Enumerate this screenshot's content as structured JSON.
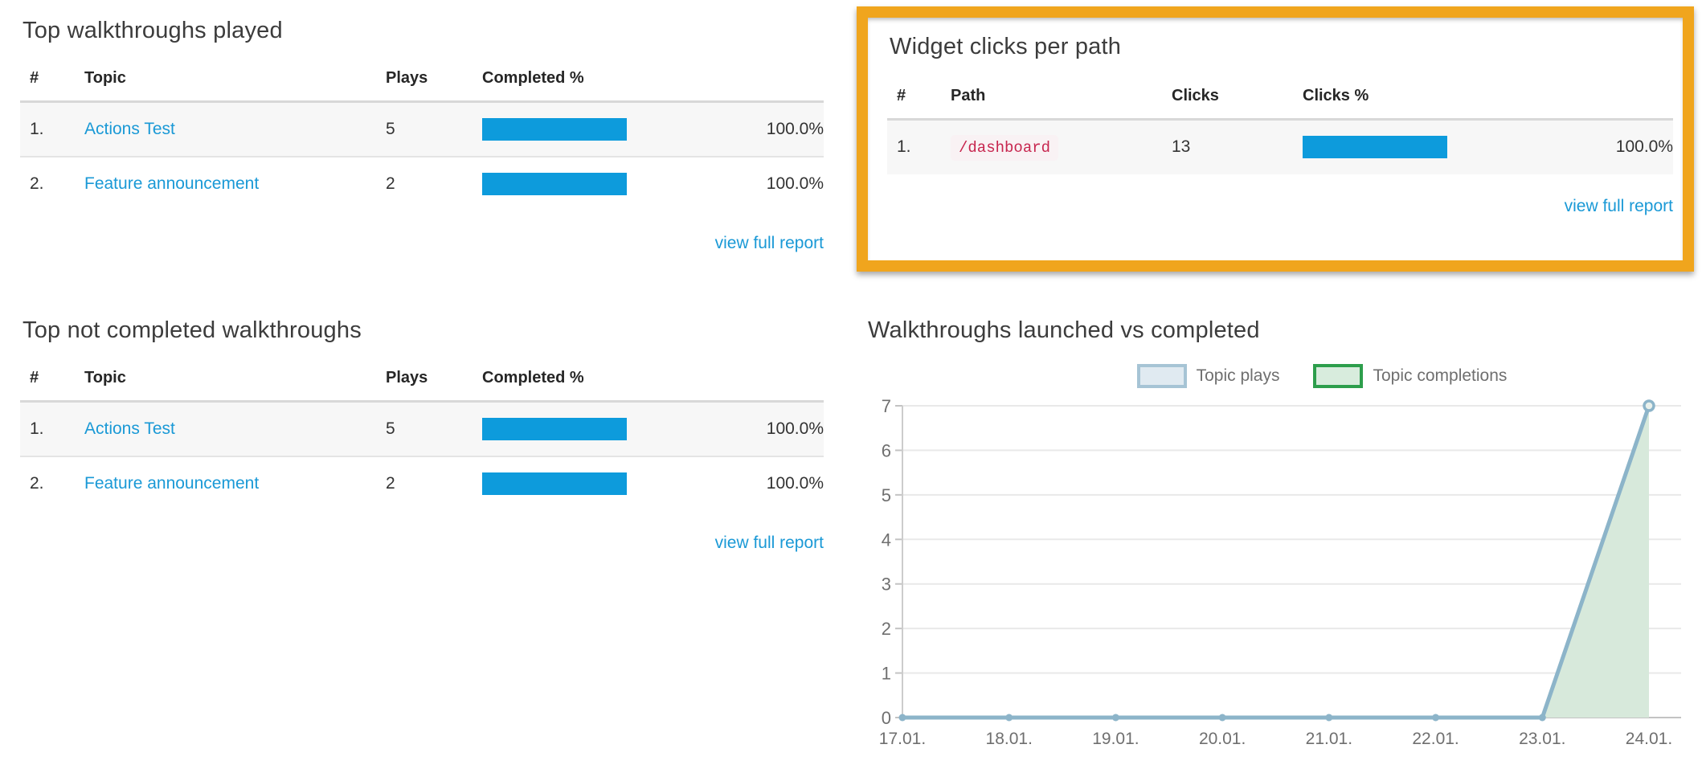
{
  "colors": {
    "highlight_border": "#f0a51d",
    "bar_blue": "#0d9bdc",
    "link_blue": "#1a99d6",
    "row_stripe": "#f7f7f7",
    "code_red": "#c7254e",
    "code_bg": "#f9f2f4"
  },
  "panels": {
    "top_played": {
      "title": "Top walkthroughs played",
      "columns": [
        "#",
        "Topic",
        "Plays",
        "Completed %"
      ],
      "rows": [
        {
          "rank": "1.",
          "topic": "Actions Test",
          "plays": "5",
          "pct": 100,
          "pct_label": "100.0%"
        },
        {
          "rank": "2.",
          "topic": "Feature announcement",
          "plays": "2",
          "pct": 100,
          "pct_label": "100.0%"
        }
      ],
      "footer_link": "view full report"
    },
    "widget_clicks": {
      "title": "Widget clicks per path",
      "columns": [
        "#",
        "Path",
        "Clicks",
        "Clicks %"
      ],
      "rows": [
        {
          "rank": "1.",
          "path": "/dashboard",
          "clicks": "13",
          "pct": 100,
          "pct_label": "100.0%"
        }
      ],
      "footer_link": "view full report"
    },
    "not_completed": {
      "title": "Top not completed walkthroughs",
      "columns": [
        "#",
        "Topic",
        "Plays",
        "Completed %"
      ],
      "rows": [
        {
          "rank": "1.",
          "topic": "Actions Test",
          "plays": "5",
          "pct": 100,
          "pct_label": "100.0%"
        },
        {
          "rank": "2.",
          "topic": "Feature announcement",
          "plays": "2",
          "pct": 100,
          "pct_label": "100.0%"
        }
      ],
      "footer_link": "view full report"
    }
  },
  "chart_data": {
    "type": "area",
    "title": "Walkthroughs launched vs completed",
    "x": [
      "17.01.",
      "18.01.",
      "19.01.",
      "20.01.",
      "21.01.",
      "22.01.",
      "23.01.",
      "24.01."
    ],
    "series": [
      {
        "name": "Topic plays",
        "values": [
          0,
          0,
          0,
          0,
          0,
          0,
          0,
          7
        ],
        "line_color": "#8cb4c9",
        "legend_fill": "#e0eaf1",
        "legend_border": "#a6c4d5"
      },
      {
        "name": "Topic completions",
        "values": [
          0,
          0,
          0,
          0,
          0,
          0,
          0,
          7
        ],
        "line_color": "#2d9e4c",
        "fill_color": "#d7e9db",
        "legend_fill": "#d8ecdd",
        "legend_border": "#2d9e4c"
      }
    ],
    "ylim": [
      0,
      7
    ],
    "yticks": [
      0,
      1,
      2,
      3,
      4,
      5,
      6,
      7
    ],
    "grid": true,
    "legend_position": "top",
    "axis_text_color": "#6f6f6f",
    "grid_color": "#e9e9e9",
    "baseline_color": "#c3c3c3"
  }
}
